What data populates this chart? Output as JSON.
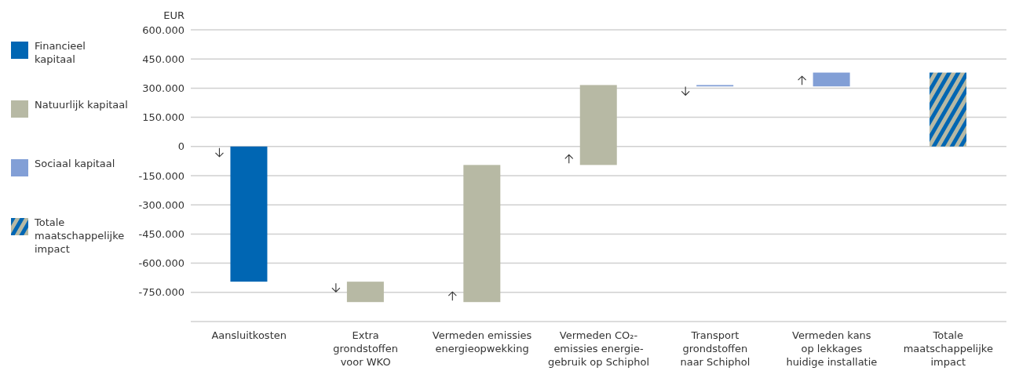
{
  "chart_data": {
    "type": "bar",
    "ylabel": "EUR",
    "categories": [
      "Aansluitkosten",
      "Extra\ngrondstoffen\nvoor WKO",
      "Vermeden emissies\nenergieopwekking",
      "Vermeden CO₂-\nemissies energie-\ngebruik op Schiphol",
      "Transport\ngrondstoffen\nnaar Schiphol",
      "Vermeden kans\nop lekkages\nhuidige installatie",
      "Totale\nmaatschappelijke\nimpact"
    ],
    "series": [
      {
        "name": "Financieel\nkapitaal",
        "color": "#0066b3",
        "values": [
          -695000,
          null,
          null,
          null,
          null,
          null,
          null
        ],
        "base": [
          0,
          null,
          null,
          null,
          null,
          null,
          null
        ]
      },
      {
        "name": "Natuurlijk kapitaal",
        "color": "#b7b9a4",
        "values": [
          null,
          -105000,
          705000,
          411000,
          null,
          null,
          null
        ],
        "base": [
          null,
          -695000,
          -800000,
          -95000,
          null,
          null,
          null
        ]
      },
      {
        "name": "Sociaal kapitaal",
        "color": "#829fd6",
        "values": [
          null,
          null,
          null,
          null,
          -7000,
          71000,
          null
        ],
        "base": [
          null,
          null,
          null,
          null,
          316000,
          309000,
          null
        ]
      },
      {
        "name": "Totale\nmaatschappelijke\nimpact",
        "color": "#0066b3",
        "values": [
          null,
          null,
          null,
          null,
          null,
          null,
          380000
        ],
        "base": [
          null,
          null,
          null,
          null,
          null,
          null,
          0
        ]
      }
    ],
    "ylim": [
      -900000,
      600000
    ],
    "yticks": [
      {
        "value": -900000,
        "label": null
      },
      {
        "value": -750000,
        "label": "-750.000"
      },
      {
        "value": -600000,
        "label": "-600.000"
      },
      {
        "value": -450000,
        "label": "-450.000"
      },
      {
        "value": -300000,
        "label": "-300.000"
      },
      {
        "value": -150000,
        "label": "-150.000"
      },
      0,
      {
        "value": 150000,
        "label": "150.000"
      },
      {
        "value": 300000,
        "label": "300.000"
      },
      {
        "value": 450000,
        "label": "450.000"
      },
      {
        "value": 600000,
        "label": "600.000"
      }
    ],
    "grid": "y",
    "legend": "left"
  }
}
